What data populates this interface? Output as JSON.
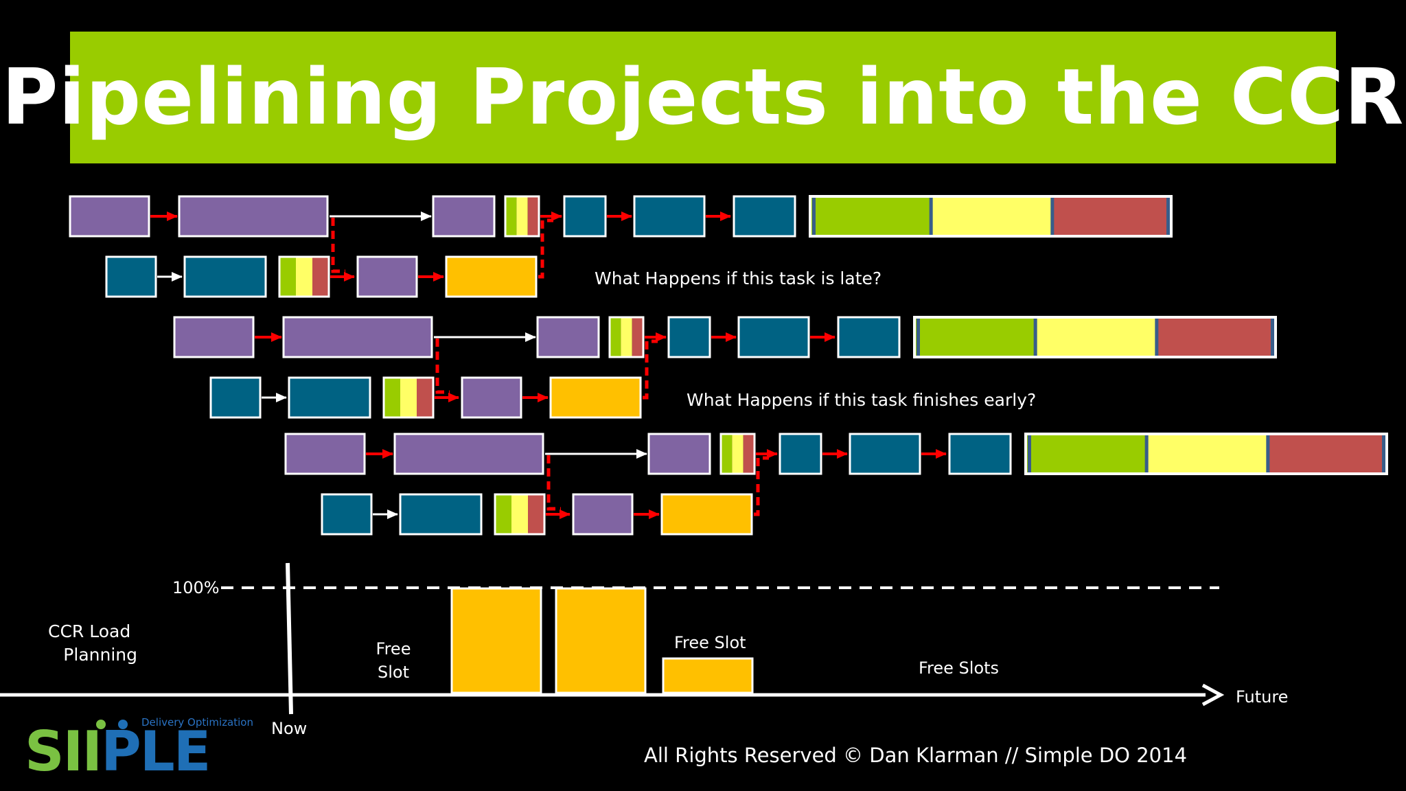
{
  "title": "Pipelining Projects into the CCR",
  "annotations": {
    "late": "What Happens if this task is late?",
    "early": "What Happens if this task finishes early?"
  },
  "load_planning": {
    "label_line1": "CCR Load",
    "label_line2": "Planning",
    "percent_label": "100%",
    "now_label": "Now",
    "future_label": "Future",
    "free_slot_a_line1": "Free",
    "free_slot_a_line2": "Slot",
    "free_slot_b": "Free Slot",
    "free_slots": "Free Slots"
  },
  "footer": {
    "copyright": "All Rights Reserved © Dan Klarman // Simple DO 2014"
  },
  "logo": {
    "word_part1": "SI",
    "word_part2": "I",
    "word_part3": "PLE",
    "tagline": "Delivery Optimization"
  },
  "colors": {
    "banner": "#99cc00",
    "purple_task": "#8064a2",
    "teal_task": "#006283",
    "ccr_task": "#ffc000",
    "buffer_green": "#99cc00",
    "buffer_yellow": "#ffff66",
    "buffer_red": "#c0504d",
    "critical_link": "#ff0000"
  }
}
